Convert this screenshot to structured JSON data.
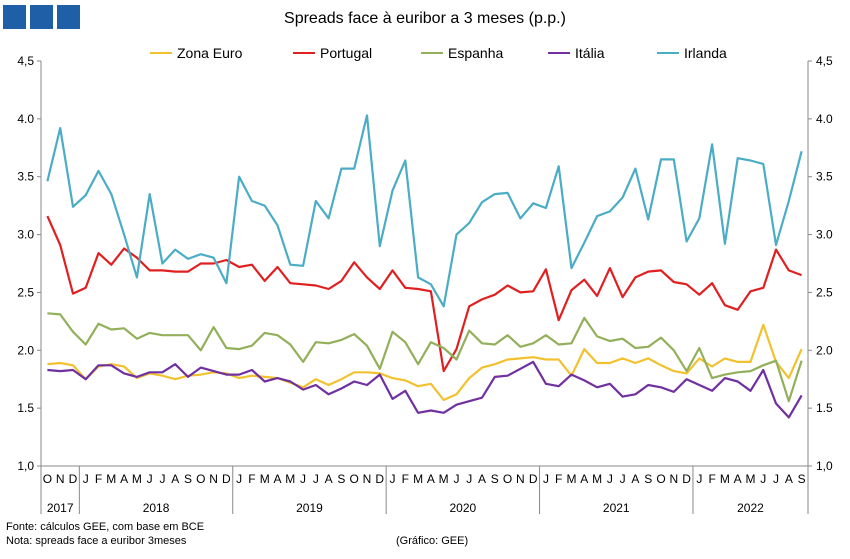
{
  "header": {
    "title": "Spreads face à euribor a 3 meses (p.p.)"
  },
  "footer": {
    "source": "Fonte: cálculos GEE, com base em BCE",
    "note": "Nota: spreads face a euribor 3meses",
    "credit": "(Gráfico: GEE)"
  },
  "chart_data": {
    "type": "line",
    "title": "Spreads face à euribor a 3 meses (p.p.)",
    "ylim": [
      1.0,
      4.5
    ],
    "yticks": [
      "1,0",
      "1.5",
      "2.0",
      "2.5",
      "3.0",
      "3.5",
      "4.0",
      "4,5"
    ],
    "ytick_values": [
      1.0,
      1.5,
      2.0,
      2.5,
      3.0,
      3.5,
      4.0,
      4.5
    ],
    "grid": false,
    "legend_position": "top",
    "x_month_labels": [
      "O",
      "N",
      "D",
      "J",
      "F",
      "M",
      "A",
      "M",
      "J",
      "J",
      "A",
      "S",
      "O",
      "N",
      "D",
      "J",
      "F",
      "M",
      "A",
      "M",
      "J",
      "J",
      "A",
      "S",
      "O",
      "N",
      "D",
      "J",
      "F",
      "M",
      "A",
      "M",
      "J",
      "J",
      "A",
      "S",
      "O",
      "N",
      "D",
      "J",
      "F",
      "M",
      "A",
      "M",
      "J",
      "J",
      "A",
      "S",
      "O",
      "N",
      "D",
      "J",
      "F",
      "M",
      "A",
      "M",
      "J",
      "J",
      "A",
      "S"
    ],
    "x_year_groups": [
      {
        "label": "2017",
        "months": 3
      },
      {
        "label": "2018",
        "months": 12
      },
      {
        "label": "2019",
        "months": 12
      },
      {
        "label": "2020",
        "months": 12
      },
      {
        "label": "2021",
        "months": 12
      },
      {
        "label": "2022",
        "months": 9
      }
    ],
    "series": [
      {
        "name": "Zona Euro",
        "color": "#f2c12e",
        "values": [
          1.88,
          1.89,
          1.87,
          1.75,
          1.86,
          1.88,
          1.86,
          1.76,
          1.8,
          1.78,
          1.75,
          1.78,
          1.79,
          1.81,
          1.8,
          1.76,
          1.78,
          1.77,
          1.76,
          1.72,
          1.68,
          1.75,
          1.7,
          1.75,
          1.81,
          1.81,
          1.8,
          1.76,
          1.74,
          1.69,
          1.71,
          1.57,
          1.62,
          1.76,
          1.85,
          1.88,
          1.92,
          1.93,
          1.94,
          1.92,
          1.92,
          1.78,
          2.01,
          1.89,
          1.89,
          1.93,
          1.89,
          1.93,
          1.87,
          1.82,
          1.8,
          1.93,
          1.86,
          1.93,
          1.9,
          1.9,
          2.22,
          1.9,
          1.76,
          2.01
        ]
      },
      {
        "name": "Portugal",
        "color": "#e02020",
        "values": [
          3.16,
          2.91,
          2.49,
          2.54,
          2.84,
          2.74,
          2.88,
          2.8,
          2.69,
          2.69,
          2.68,
          2.68,
          2.75,
          2.75,
          2.78,
          2.72,
          2.74,
          2.6,
          2.72,
          2.58,
          2.57,
          2.56,
          2.53,
          2.6,
          2.76,
          2.63,
          2.53,
          2.69,
          2.54,
          2.53,
          2.51,
          1.82,
          2.01,
          2.38,
          2.44,
          2.48,
          2.56,
          2.5,
          2.51,
          2.7,
          2.26,
          2.52,
          2.61,
          2.47,
          2.71,
          2.46,
          2.63,
          2.68,
          2.69,
          2.59,
          2.57,
          2.48,
          2.58,
          2.39,
          2.35,
          2.51,
          2.54,
          2.87,
          2.69,
          2.65
        ]
      },
      {
        "name": "Espanha",
        "color": "#92b05a",
        "values": [
          2.32,
          2.31,
          2.16,
          2.05,
          2.23,
          2.18,
          2.19,
          2.1,
          2.15,
          2.13,
          2.13,
          2.13,
          2.0,
          2.2,
          2.02,
          2.01,
          2.04,
          2.15,
          2.13,
          2.05,
          1.9,
          2.07,
          2.06,
          2.09,
          2.14,
          2.04,
          1.84,
          2.16,
          2.07,
          1.88,
          2.07,
          2.02,
          1.92,
          2.17,
          2.06,
          2.05,
          2.13,
          2.03,
          2.06,
          2.13,
          2.05,
          2.06,
          2.28,
          2.12,
          2.08,
          2.1,
          2.02,
          2.03,
          2.11,
          2.0,
          1.82,
          2.02,
          1.76,
          1.79,
          1.81,
          1.82,
          1.87,
          1.91,
          1.56,
          1.91
        ]
      },
      {
        "name": "Itália",
        "color": "#7030a0",
        "values": [
          1.83,
          1.82,
          1.83,
          1.75,
          1.87,
          1.87,
          1.8,
          1.77,
          1.81,
          1.81,
          1.88,
          1.77,
          1.85,
          1.82,
          1.79,
          1.79,
          1.83,
          1.73,
          1.76,
          1.73,
          1.66,
          1.7,
          1.62,
          1.67,
          1.73,
          1.7,
          1.79,
          1.58,
          1.65,
          1.46,
          1.48,
          1.46,
          1.53,
          1.56,
          1.59,
          1.77,
          1.78,
          1.84,
          1.9,
          1.71,
          1.69,
          1.79,
          1.74,
          1.68,
          1.71,
          1.6,
          1.62,
          1.7,
          1.68,
          1.64,
          1.75,
          1.7,
          1.65,
          1.76,
          1.73,
          1.65,
          1.83,
          1.54,
          1.42,
          1.61
        ]
      },
      {
        "name": "Irlanda",
        "color": "#4bacc6",
        "values": [
          3.46,
          3.92,
          3.24,
          3.34,
          3.55,
          3.35,
          3.0,
          2.63,
          3.35,
          2.75,
          2.87,
          2.79,
          2.83,
          2.8,
          2.58,
          3.5,
          3.29,
          3.25,
          3.08,
          2.74,
          2.73,
          3.29,
          3.14,
          3.57,
          3.57,
          4.03,
          2.9,
          3.38,
          3.64,
          2.63,
          2.57,
          2.38,
          3.0,
          3.1,
          3.28,
          3.35,
          3.36,
          3.14,
          3.27,
          3.23,
          3.59,
          2.71,
          2.93,
          3.16,
          3.2,
          3.32,
          3.57,
          3.13,
          3.65,
          3.65,
          2.94,
          3.14,
          3.78,
          2.92,
          3.66,
          3.64,
          3.61,
          2.91,
          3.29,
          3.72
        ]
      }
    ]
  }
}
